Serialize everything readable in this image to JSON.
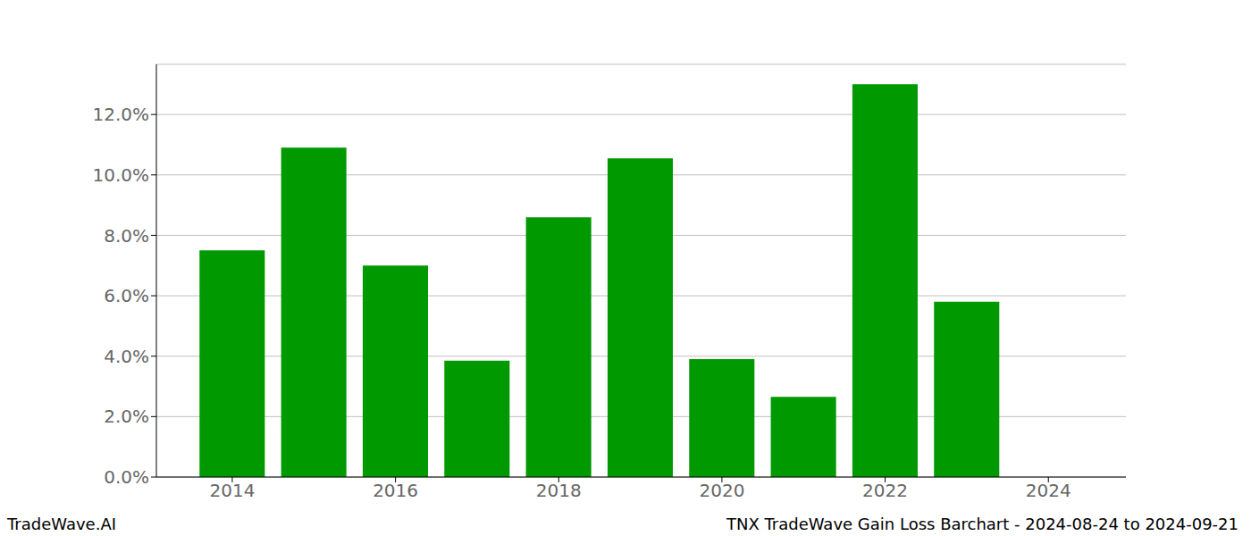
{
  "chart_data": {
    "type": "bar",
    "title": "TNX TradeWave Gain Loss Barchart - 2024-08-24 to 2024-09-21",
    "annotations": [
      "TradeWave.AI"
    ],
    "x": [
      2014,
      2015,
      2016,
      2017,
      2018,
      2019,
      2020,
      2021,
      2022,
      2023,
      2024
    ],
    "values": [
      7.5,
      10.9,
      7.0,
      3.85,
      8.6,
      10.55,
      3.9,
      2.65,
      13.0,
      5.8,
      0
    ],
    "color": "#009900",
    "xlim": [
      2013.07,
      2024.95
    ],
    "xticks": [
      2014,
      2016,
      2018,
      2020,
      2022,
      2024
    ],
    "ylim": [
      0,
      13.66
    ],
    "yticks": [
      {
        "value": 0,
        "label": "0.0%"
      },
      {
        "value": 2,
        "label": "2.0%"
      },
      {
        "value": 4,
        "label": "4.0%"
      },
      {
        "value": 6,
        "label": "6.0%"
      },
      {
        "value": 8,
        "label": "8.0%"
      },
      {
        "value": 10,
        "label": "10.0%"
      },
      {
        "value": 12,
        "label": "12.0%"
      }
    ],
    "grid": true
  }
}
